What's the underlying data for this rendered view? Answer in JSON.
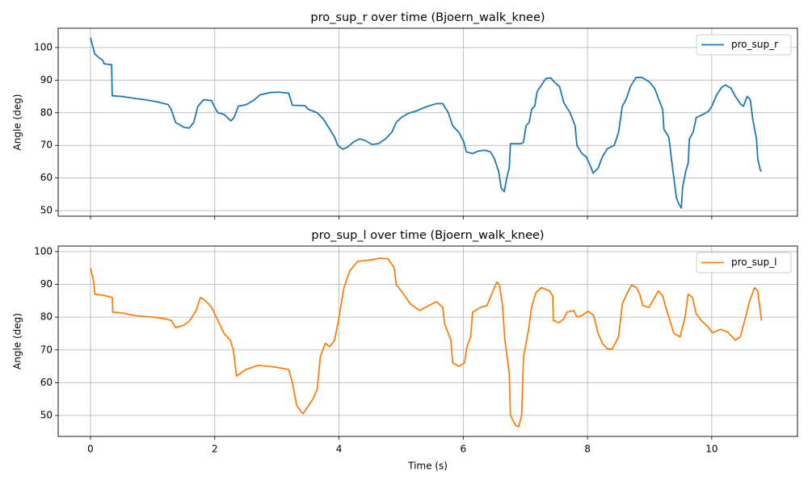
{
  "chart_data": [
    {
      "type": "line",
      "title": "pro_sup_r over time (Bjoern_walk_knee)",
      "ylabel": "Angle (deg)",
      "x": [
        0,
        0.07,
        0.13,
        0.2,
        0.22,
        0.34,
        0.35,
        0.5,
        0.75,
        0.88,
        1.08,
        1.25,
        1.3,
        1.37,
        1.51,
        1.59,
        1.66,
        1.73,
        1.82,
        1.95,
        1.99,
        2.05,
        2.15,
        2.26,
        2.31,
        2.38,
        2.51,
        2.64,
        2.73,
        2.9,
        3.03,
        3.19,
        3.25,
        3.45,
        3.51,
        3.65,
        3.75,
        3.85,
        3.93,
        3.98,
        4.06,
        4.14,
        4.23,
        4.33,
        4.42,
        4.53,
        4.63,
        4.75,
        4.85,
        4.92,
        5.0,
        5.11,
        5.24,
        5.4,
        5.57,
        5.67,
        5.76,
        5.83,
        5.93,
        6.01,
        6.05,
        6.15,
        6.25,
        6.35,
        6.44,
        6.5,
        6.57,
        6.61,
        6.66,
        6.7,
        6.74,
        6.76,
        6.93,
        6.97,
        7.01,
        7.06,
        7.1,
        7.15,
        7.19,
        7.26,
        7.33,
        7.41,
        7.46,
        7.55,
        7.62,
        7.72,
        7.8,
        7.83,
        7.91,
        7.98,
        8.04,
        8.09,
        8.17,
        8.24,
        8.32,
        8.43,
        8.5,
        8.56,
        8.62,
        8.69,
        8.78,
        8.88,
        8.99,
        9.08,
        9.21,
        9.23,
        9.31,
        9.35,
        9.39,
        9.43,
        9.47,
        9.51,
        9.53,
        9.58,
        9.62,
        9.64,
        9.7,
        9.75,
        9.86,
        9.95,
        10.0,
        10.08,
        10.16,
        10.22,
        10.31,
        10.38,
        10.47,
        10.51,
        10.57,
        10.62,
        10.66,
        10.72,
        10.74,
        10.78,
        10.8
      ],
      "series": [
        {
          "name": "pro_sup_r",
          "color": "#1f77b4",
          "values": [
            103,
            98,
            97,
            96,
            95,
            94.7,
            85.2,
            85,
            84.3,
            84,
            83.3,
            82.5,
            81,
            77,
            75.5,
            75.3,
            77,
            82,
            84,
            83.7,
            82,
            80,
            79.5,
            77.5,
            78.5,
            82,
            82.5,
            84,
            85.5,
            86.2,
            86.3,
            86,
            82.3,
            82.2,
            81,
            80,
            78,
            75,
            72.5,
            70,
            68.8,
            69.5,
            71,
            72,
            71.5,
            70.3,
            70.5,
            72,
            74,
            77,
            78.5,
            79.8,
            80.5,
            81.8,
            82.8,
            82.8,
            80,
            76,
            74,
            71,
            68,
            67.5,
            68.3,
            68.5,
            68,
            66,
            62,
            57,
            55.8,
            60,
            63,
            70.5,
            70.5,
            71,
            76,
            77,
            81,
            82,
            86.5,
            88.5,
            90.5,
            90.7,
            89.5,
            88,
            83,
            80,
            76,
            70,
            67.5,
            66.5,
            64,
            61.5,
            63,
            66.5,
            69,
            70,
            74,
            82,
            84,
            88,
            90.8,
            90.8,
            89.5,
            87.5,
            81,
            75,
            72.5,
            66,
            60,
            54,
            52,
            50.8,
            57,
            62,
            64.5,
            72,
            74,
            78.5,
            79.5,
            80.5,
            82,
            85.5,
            87.8,
            88.5,
            87.5,
            85,
            82.5,
            82,
            85,
            84,
            78,
            72,
            66,
            62.5,
            62
          ]
        }
      ],
      "xlim": [
        -0.52,
        11.38
      ],
      "ylim": [
        48.3,
        105.9
      ],
      "xticks": [
        0,
        2,
        4,
        6,
        8,
        10
      ],
      "yticks": [
        50,
        60,
        70,
        80,
        90,
        100
      ],
      "xticklabels": false,
      "grid": true,
      "legend": "upper right"
    },
    {
      "type": "line",
      "title": "pro_sup_l over time (Bjoern_walk_knee)",
      "xlabel": "Time (s)",
      "ylabel": "Angle (deg)",
      "x": [
        0,
        0.05,
        0.07,
        0.2,
        0.35,
        0.36,
        0.5,
        0.7,
        1.0,
        1.2,
        1.3,
        1.37,
        1.5,
        1.6,
        1.7,
        1.77,
        1.85,
        1.95,
        2.05,
        2.15,
        2.25,
        2.3,
        2.35,
        2.5,
        2.7,
        2.96,
        3.19,
        3.25,
        3.32,
        3.42,
        3.58,
        3.65,
        3.7,
        3.78,
        3.85,
        3.93,
        4.0,
        4.08,
        4.17,
        4.3,
        4.52,
        4.66,
        4.79,
        4.89,
        4.92,
        5.0,
        5.15,
        5.3,
        5.44,
        5.57,
        5.67,
        5.7,
        5.8,
        5.83,
        5.93,
        6.02,
        6.06,
        6.12,
        6.15,
        6.28,
        6.38,
        6.48,
        6.54,
        6.58,
        6.63,
        6.67,
        6.74,
        6.76,
        6.84,
        6.89,
        6.94,
        6.97,
        7.05,
        7.1,
        7.17,
        7.26,
        7.39,
        7.44,
        7.45,
        7.54,
        7.62,
        7.67,
        7.78,
        7.83,
        7.91,
        8.01,
        8.1,
        8.17,
        8.24,
        8.32,
        8.4,
        8.5,
        8.56,
        8.63,
        8.71,
        8.79,
        8.84,
        8.89,
        8.99,
        9.08,
        9.14,
        9.21,
        9.26,
        9.31,
        9.39,
        9.49,
        9.57,
        9.62,
        9.69,
        9.75,
        9.83,
        9.94,
        10.01,
        10.14,
        10.25,
        10.38,
        10.46,
        10.53,
        10.61,
        10.69,
        10.74,
        10.8
      ],
      "series": [
        {
          "name": "pro_sup_l",
          "color": "#ff7f0e",
          "values": [
            95,
            91,
            87,
            86.7,
            86,
            81.5,
            81.3,
            80.5,
            80,
            79.5,
            79,
            76.8,
            77.5,
            79,
            82,
            86,
            85,
            83,
            79,
            75,
            73,
            70,
            62,
            64,
            65.3,
            64.8,
            64,
            60,
            53,
            50.5,
            55,
            58,
            68,
            72,
            71,
            73,
            80,
            89,
            94,
            97,
            97.5,
            98,
            97.8,
            95,
            90,
            88,
            84,
            82,
            83.5,
            84.7,
            83,
            78,
            73,
            66,
            65,
            66,
            71,
            74,
            81.5,
            83,
            83.5,
            88,
            90.7,
            90,
            84,
            73,
            63,
            50,
            47,
            46.5,
            50,
            68,
            76,
            83,
            87.5,
            89,
            88,
            86.5,
            79,
            78.3,
            79.5,
            81.5,
            82,
            80,
            80.5,
            81.8,
            80.5,
            75,
            72,
            70.3,
            70.3,
            74,
            84,
            87,
            89.8,
            89,
            87,
            83.5,
            83,
            86,
            88,
            86.5,
            83,
            80,
            75,
            74,
            80,
            87,
            86,
            81,
            79,
            77,
            75.2,
            76.3,
            75.5,
            73,
            74,
            79,
            85,
            89,
            88,
            79
          ]
        }
      ],
      "xlim": [
        -0.52,
        11.38
      ],
      "ylim": [
        43.6,
        101.7
      ],
      "xticks": [
        0,
        2,
        4,
        6,
        8,
        10
      ],
      "yticks": [
        50,
        60,
        70,
        80,
        90,
        100
      ],
      "xticklabels": true,
      "grid": true,
      "legend": "upper right"
    }
  ]
}
